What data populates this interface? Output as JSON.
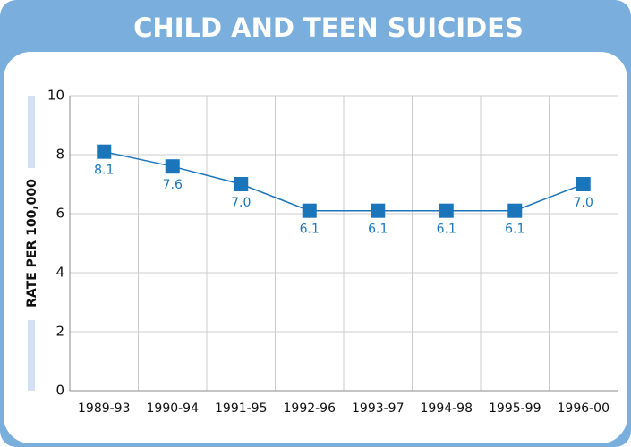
{
  "chart_data": {
    "type": "line",
    "title": "CHILD AND TEEN SUICIDES",
    "y_label": "RATE PER 100,000",
    "categories": [
      "1989-93",
      "1990-94",
      "1991-95",
      "1992-96",
      "1993-97",
      "1994-98",
      "1995-99",
      "1996-00"
    ],
    "series": [
      {
        "name": "Rate",
        "color": "#1a75bb",
        "values": [
          8.1,
          7.6,
          7.0,
          6.1,
          6.1,
          6.1,
          6.1,
          7.0
        ],
        "value_labels": [
          "8.1",
          "7.6",
          "7.0",
          "6.1",
          "6.1",
          "6.1",
          "6.1",
          "7.0"
        ]
      }
    ],
    "ylim": [
      0,
      10
    ],
    "yticks": [
      0,
      2,
      4,
      6,
      8,
      10
    ],
    "grid": true
  }
}
